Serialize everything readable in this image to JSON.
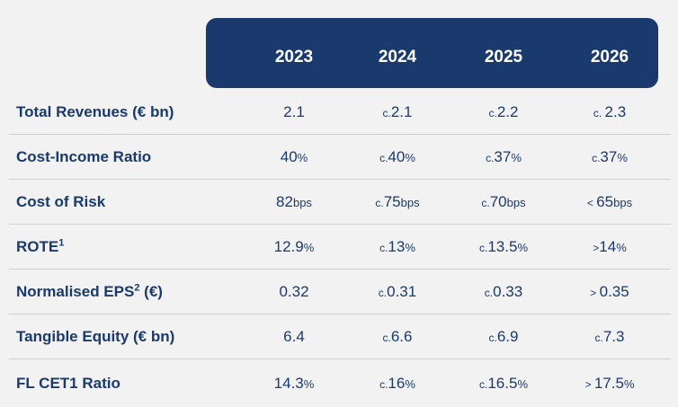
{
  "header": {
    "years": [
      "2023",
      "2024",
      "2025",
      "2026"
    ]
  },
  "rows": [
    {
      "label": "Total Revenues (€ bn)",
      "sup": "",
      "suffix": "",
      "cells": [
        {
          "pre": "",
          "val": "2.1",
          "unit": ""
        },
        {
          "pre": "c.",
          "val": "2.1",
          "unit": ""
        },
        {
          "pre": "c.",
          "val": "2.2",
          "unit": ""
        },
        {
          "pre": "c. ",
          "val": "2.3",
          "unit": ""
        }
      ]
    },
    {
      "label": "Cost-Income Ratio",
      "sup": "",
      "suffix": "",
      "cells": [
        {
          "pre": "",
          "val": "40",
          "unit": "%"
        },
        {
          "pre": "c.",
          "val": "40",
          "unit": "%"
        },
        {
          "pre": "c.",
          "val": "37",
          "unit": "%"
        },
        {
          "pre": "c.",
          "val": "37",
          "unit": "%"
        }
      ]
    },
    {
      "label": "Cost of Risk",
      "sup": "",
      "suffix": "",
      "cells": [
        {
          "pre": "",
          "val": "82",
          "unit": "bps"
        },
        {
          "pre": "c.",
          "val": "75",
          "unit": "bps"
        },
        {
          "pre": "c.",
          "val": "70",
          "unit": "bps"
        },
        {
          "pre": "< ",
          "val": "65",
          "unit": "bps"
        }
      ]
    },
    {
      "label": "ROTE",
      "sup": "1",
      "suffix": "",
      "cells": [
        {
          "pre": "",
          "val": "12.9",
          "unit": "%"
        },
        {
          "pre": "c.",
          "val": "13",
          "unit": "%"
        },
        {
          "pre": "c.",
          "val": "13.5",
          "unit": "%"
        },
        {
          "pre": ">",
          "val": "14",
          "unit": "%"
        }
      ]
    },
    {
      "label": "Normalised EPS",
      "sup": "2",
      "suffix": " (€)",
      "cells": [
        {
          "pre": "",
          "val": "0.32",
          "unit": ""
        },
        {
          "pre": "c.",
          "val": "0.31",
          "unit": ""
        },
        {
          "pre": "c.",
          "val": "0.33",
          "unit": ""
        },
        {
          "pre": "> ",
          "val": "0.35",
          "unit": ""
        }
      ]
    },
    {
      "label": "Tangible Equity (€ bn)",
      "sup": "",
      "suffix": "",
      "cells": [
        {
          "pre": "",
          "val": "6.4",
          "unit": ""
        },
        {
          "pre": "c.",
          "val": "6.6",
          "unit": ""
        },
        {
          "pre": "c.",
          "val": "6.9",
          "unit": ""
        },
        {
          "pre": "c.",
          "val": "7.3",
          "unit": ""
        }
      ]
    },
    {
      "label": "FL CET1 Ratio",
      "sup": "",
      "suffix": "",
      "cells": [
        {
          "pre": "",
          "val": "14.3",
          "unit": "%"
        },
        {
          "pre": "c.",
          "val": "16",
          "unit": "%"
        },
        {
          "pre": "c.",
          "val": "16.5",
          "unit": "%"
        },
        {
          "pre": "> ",
          "val": "17.5",
          "unit": "%"
        }
      ]
    }
  ]
}
